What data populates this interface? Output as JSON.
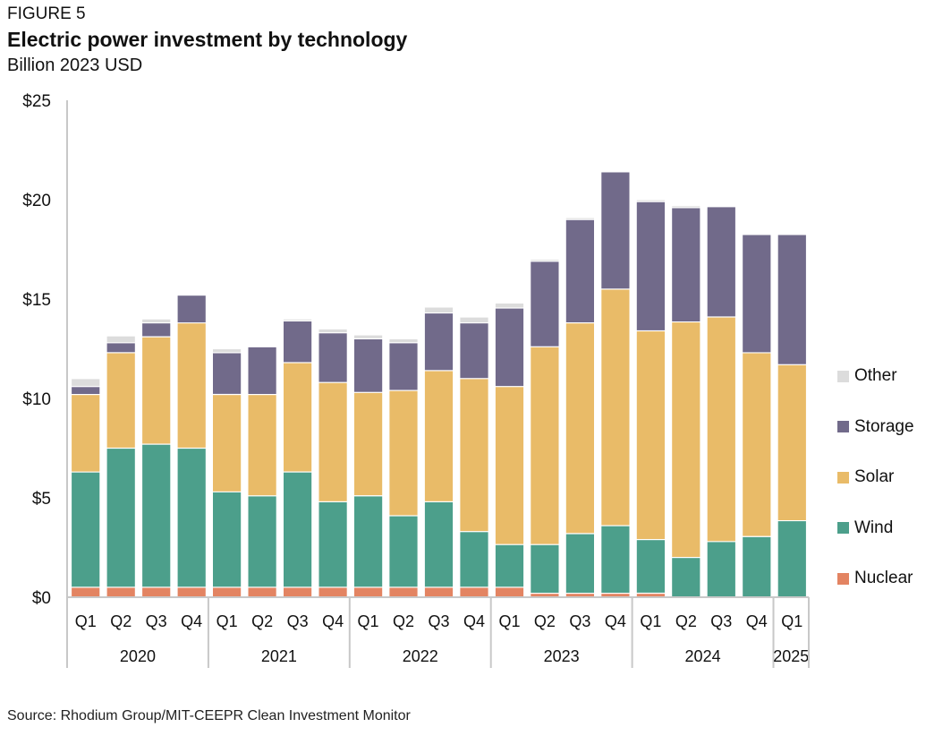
{
  "figure_label": "FIGURE 5",
  "source": "Source: Rhodium Group/MIT-CEEPR Clean Investment Monitor",
  "chart_data": {
    "type": "bar",
    "stacked": true,
    "title": "Electric power investment by technology",
    "subtitle": "Billion 2023 USD",
    "xlabel": "",
    "ylabel": "Billion 2023 USD",
    "ylim": [
      0,
      25
    ],
    "yticks": [
      0,
      5,
      10,
      15,
      20,
      25
    ],
    "ytick_labels": [
      "$0",
      "$5",
      "$10",
      "$15",
      "$20",
      "$25"
    ],
    "grid": false,
    "legend_position": "right",
    "categories": [
      "Q1",
      "Q2",
      "Q3",
      "Q4",
      "Q1",
      "Q2",
      "Q3",
      "Q4",
      "Q1",
      "Q2",
      "Q3",
      "Q4",
      "Q1",
      "Q2",
      "Q3",
      "Q4",
      "Q1",
      "Q2",
      "Q3",
      "Q4",
      "Q1"
    ],
    "year_groups": [
      {
        "label": "2020",
        "count": 4
      },
      {
        "label": "2021",
        "count": 4
      },
      {
        "label": "2022",
        "count": 4
      },
      {
        "label": "2023",
        "count": 4
      },
      {
        "label": "2024",
        "count": 4
      },
      {
        "label": "2025",
        "count": 1
      }
    ],
    "series": [
      {
        "name": "Nuclear",
        "color": "#e38462",
        "values": [
          0.5,
          0.5,
          0.5,
          0.5,
          0.5,
          0.5,
          0.5,
          0.5,
          0.5,
          0.5,
          0.5,
          0.5,
          0.5,
          0.2,
          0.2,
          0.2,
          0.2,
          0.0,
          0.0,
          0.0,
          0.0
        ]
      },
      {
        "name": "Wind",
        "color": "#4c9f8b",
        "values": [
          5.8,
          7.0,
          7.2,
          7.0,
          4.8,
          4.6,
          5.8,
          4.3,
          4.6,
          3.6,
          4.3,
          2.8,
          2.15,
          2.45,
          3.0,
          3.4,
          2.7,
          2.0,
          2.8,
          3.05,
          3.85
        ]
      },
      {
        "name": "Solar",
        "color": "#e9bb68",
        "values": [
          3.9,
          4.8,
          5.4,
          6.3,
          4.9,
          5.1,
          5.5,
          6.0,
          5.2,
          6.3,
          6.6,
          7.7,
          7.95,
          9.95,
          10.6,
          11.9,
          10.5,
          11.85,
          11.3,
          9.25,
          7.85
        ]
      },
      {
        "name": "Storage",
        "color": "#716a8a",
        "values": [
          0.4,
          0.5,
          0.7,
          1.4,
          2.1,
          2.4,
          2.1,
          2.5,
          2.7,
          2.4,
          2.9,
          2.8,
          3.95,
          4.3,
          5.2,
          5.9,
          6.5,
          5.75,
          5.55,
          5.95,
          6.55
        ]
      },
      {
        "name": "Other",
        "color": "#dcdcdc",
        "values": [
          0.4,
          0.35,
          0.2,
          0.05,
          0.2,
          0.0,
          0.1,
          0.2,
          0.2,
          0.2,
          0.3,
          0.3,
          0.25,
          0.1,
          0.1,
          0.0,
          0.1,
          0.1,
          0.05,
          0.0,
          0.0
        ]
      }
    ],
    "legend_order": [
      "Other",
      "Storage",
      "Solar",
      "Wind",
      "Nuclear"
    ]
  }
}
